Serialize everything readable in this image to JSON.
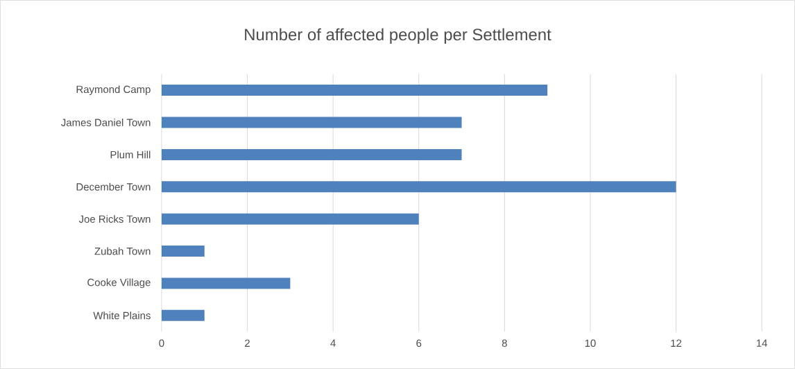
{
  "chart_data": {
    "type": "bar",
    "orientation": "horizontal",
    "title": "Number of affected people per Settlement",
    "categories": [
      "Raymond Camp",
      "James Daniel Town",
      "Plum Hill",
      "December Town",
      "Joe Ricks Town",
      "Zubah Town",
      "Cooke Village",
      "White Plains"
    ],
    "values": [
      9,
      7,
      7,
      12,
      6,
      1,
      3,
      1
    ],
    "color": "#4f81bd",
    "xlim": [
      0,
      14
    ],
    "xticks": [
      0,
      2,
      4,
      6,
      8,
      10,
      12,
      14
    ],
    "grid": "x"
  }
}
